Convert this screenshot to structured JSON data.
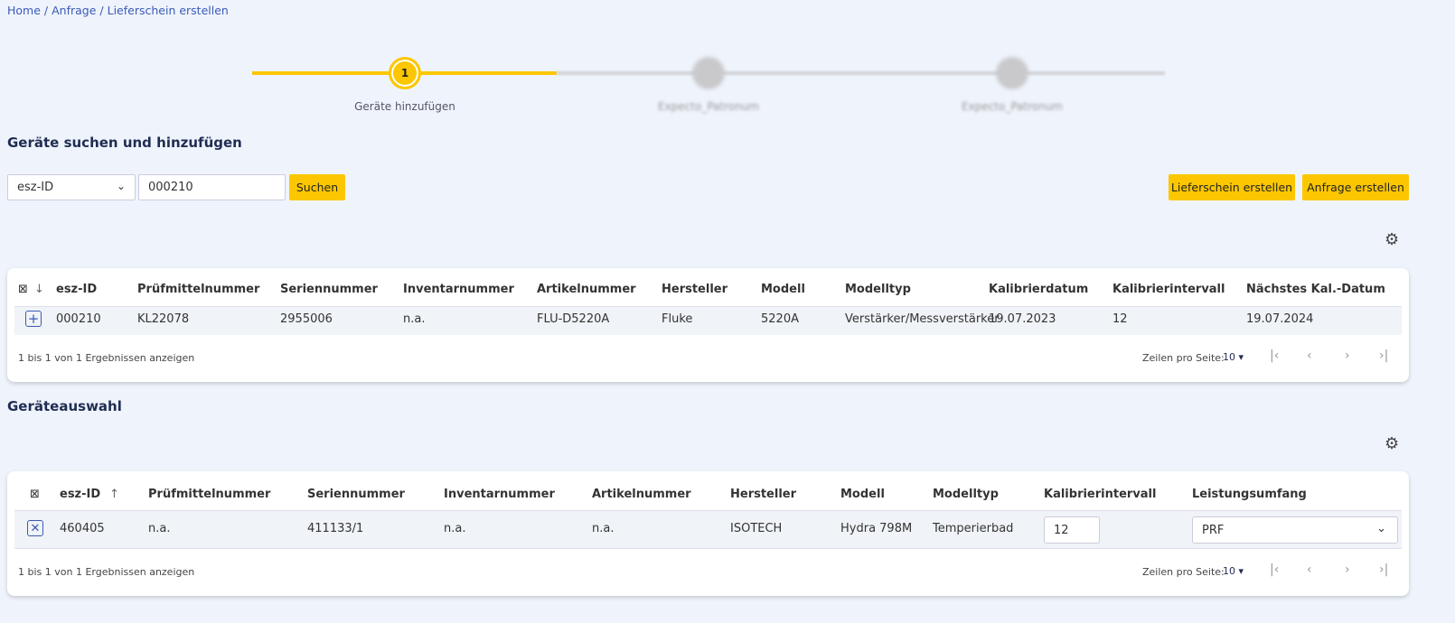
{
  "breadcrumb": {
    "home": "Home",
    "sep": "/",
    "anfrage": "Anfrage",
    "sep2": "/",
    "current": "Lieferschein erstellen"
  },
  "stepper": {
    "steps": [
      {
        "number": "1",
        "label": "Geräte hinzufügen",
        "active": true
      },
      {
        "label": "Expecto_Patronum",
        "active": false
      },
      {
        "label": "Expecto_Patronum",
        "active": false
      }
    ],
    "accent": "#fcc700"
  },
  "search": {
    "title": "Geräte suchen und hinzufügen",
    "field_select": "esz-ID",
    "query": "000210",
    "search_label": "Suchen",
    "lieferschein_label": "Lieferschein erstellen",
    "anfrage_label": "Anfrage erstellen"
  },
  "results": {
    "columns": [
      "esz-ID",
      "Prüfmittelnummer",
      "Seriennummer",
      "Inventarnummer",
      "Artikelnummer",
      "Hersteller",
      "Modell",
      "Modelltyp",
      "Kalibrierdatum",
      "Kalibrierintervall",
      "Nächstes Kal.-Datum"
    ],
    "rows": [
      [
        "000210",
        "KL22078",
        "2955006",
        "n.a.",
        "FLU-D5220A",
        "Fluke",
        "5220A",
        "Verstärker/Messverstärker",
        "19.07.2023",
        "12",
        "19.07.2024"
      ]
    ],
    "summary": "1 bis 1 von 1 Ergebnissen anzeigen",
    "rows_per_page_label": "Zeilen pro Seite:",
    "rows_per_page": "10"
  },
  "selection": {
    "title": "Geräteauswahl",
    "columns": [
      "esz-ID",
      "Prüfmittelnummer",
      "Seriennummer",
      "Inventarnummer",
      "Artikelnummer",
      "Hersteller",
      "Modell",
      "Modelltyp",
      "Kalibrierintervall",
      "Leistungsumfang"
    ],
    "rows": [
      [
        "460405",
        "n.a.",
        "411133/1",
        "n.a.",
        "n.a.",
        "ISOTECH",
        "Hydra 798M",
        "Temperierbad",
        "12",
        "PRF"
      ]
    ],
    "summary": "1 bis 1 von 1 Ergebnissen anzeigen",
    "rows_per_page_label": "Zeilen pro Seite:",
    "rows_per_page": "10"
  }
}
